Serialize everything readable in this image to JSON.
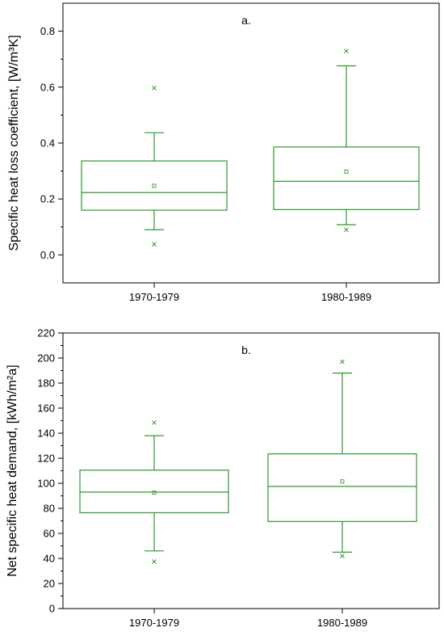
{
  "colors": {
    "box": "#2e9a2e",
    "axis": "#000000"
  },
  "chart_data": [
    {
      "type": "box",
      "panel_label": "a.",
      "ylabel": "Specific heat loss coefficient, [W/m³K]",
      "ylim": [
        -0.1,
        0.9
      ],
      "yticks": [
        0.0,
        0.2,
        0.4,
        0.6,
        0.8
      ],
      "ytick_labels": [
        "0.0",
        "0.2",
        "0.4",
        "0.6",
        "0.8"
      ],
      "categories": [
        "1970-1979",
        "1980-1989"
      ],
      "boxes": [
        {
          "category": "1970-1979",
          "whisker_low": 0.09,
          "q1": 0.16,
          "median": 0.223,
          "q3": 0.336,
          "whisker_high": 0.437,
          "mean": 0.247,
          "outliers": [
            0.597,
            0.038
          ]
        },
        {
          "category": "1980-1989",
          "whisker_low": 0.108,
          "q1": 0.162,
          "median": 0.263,
          "q3": 0.386,
          "whisker_high": 0.676,
          "mean": 0.298,
          "outliers": [
            0.729,
            0.09
          ]
        }
      ]
    },
    {
      "type": "box",
      "panel_label": "b.",
      "ylabel": "Net specific heat demand, [kWh/m²a]",
      "ylim": [
        0,
        220
      ],
      "yticks": [
        0,
        20,
        40,
        60,
        80,
        100,
        120,
        140,
        160,
        180,
        200,
        220
      ],
      "ytick_labels": [
        "0",
        "20",
        "40",
        "60",
        "80",
        "100",
        "120",
        "140",
        "160",
        "180",
        "200",
        "220"
      ],
      "categories": [
        "1970-1979",
        "1980-1989"
      ],
      "boxes": [
        {
          "category": "1970-1979",
          "whisker_low": 46,
          "q1": 76.5,
          "median": 93,
          "q3": 110.5,
          "whisker_high": 138,
          "mean": 92.5,
          "outliers": [
            148.5,
            37.5
          ]
        },
        {
          "category": "1980-1989",
          "whisker_low": 45,
          "q1": 69.5,
          "median": 97.5,
          "q3": 123.5,
          "whisker_high": 188,
          "mean": 101.5,
          "outliers": [
            197,
            42
          ]
        }
      ]
    }
  ]
}
